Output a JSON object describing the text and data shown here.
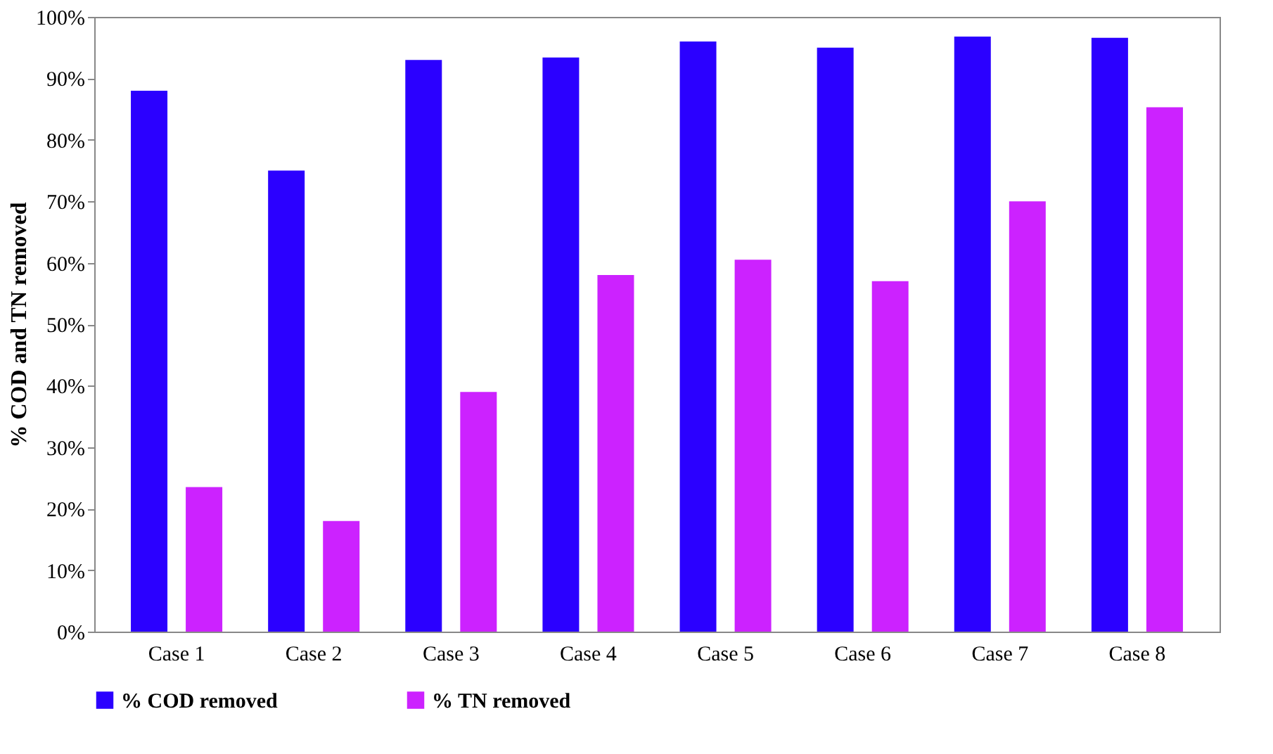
{
  "chart_data": {
    "type": "bar",
    "ylabel": "% COD and TN removed",
    "categories": [
      "Case 1",
      "Case 2",
      "Case 3",
      "Case 4",
      "Case 5",
      "Case 6",
      "Case 7",
      "Case 8"
    ],
    "series": [
      {
        "name": "% COD removed",
        "color": "#2b00ff",
        "values": [
          88,
          75,
          93,
          93.4,
          96,
          95,
          96.8,
          96.6
        ]
      },
      {
        "name": "% TN removed",
        "color": "#cc22ff",
        "values": [
          23.5,
          18,
          39,
          58,
          60.5,
          57,
          70,
          85.3
        ]
      }
    ],
    "ylim": [
      0,
      100
    ],
    "yticks": [
      {
        "value": 0,
        "label": "0%"
      },
      {
        "value": 10,
        "label": "10%"
      },
      {
        "value": 20,
        "label": "20%"
      },
      {
        "value": 30,
        "label": "30%"
      },
      {
        "value": 40,
        "label": "40%"
      },
      {
        "value": 50,
        "label": "50%"
      },
      {
        "value": 60,
        "label": "60%"
      },
      {
        "value": 70,
        "label": "70%"
      },
      {
        "value": 80,
        "label": "80%"
      },
      {
        "value": 90,
        "label": "90%"
      },
      {
        "value": 100,
        "label": "100%"
      }
    ],
    "grid": false,
    "legend": "bottom"
  }
}
